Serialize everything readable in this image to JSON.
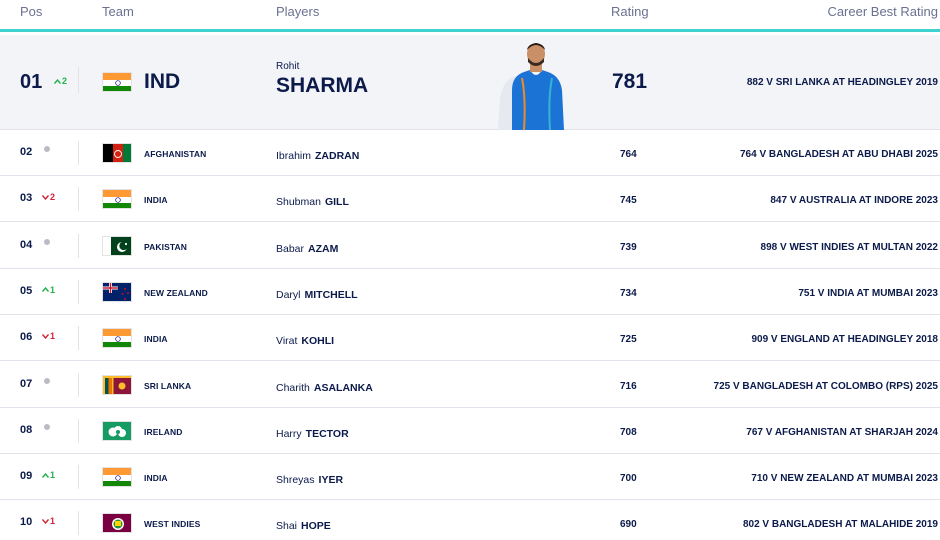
{
  "header": {
    "pos": "Pos",
    "team": "Team",
    "players": "Players",
    "rating": "Rating",
    "career_best": "Career Best Rating"
  },
  "leader": {
    "pos": "01",
    "movement": {
      "dir": "up",
      "value": "2"
    },
    "flag": "india-flag",
    "team": "IND",
    "first": "Rohit",
    "last": "SHARMA",
    "rating": "781",
    "career_best": "882 V SRI LANKA AT HEADINGLEY 2019"
  },
  "rows": [
    {
      "pos": "02",
      "movement": {
        "dir": "same",
        "value": ""
      },
      "flag": "afghanistan-flag",
      "team": "AFGHANISTAN",
      "first": "Ibrahim",
      "last": "ZADRAN",
      "rating": "764",
      "career_best": "764 V BANGLADESH AT ABU DHABI 2025"
    },
    {
      "pos": "03",
      "movement": {
        "dir": "down",
        "value": "2"
      },
      "flag": "india-flag",
      "team": "INDIA",
      "first": "Shubman",
      "last": "GILL",
      "rating": "745",
      "career_best": "847 V AUSTRALIA AT INDORE 2023"
    },
    {
      "pos": "04",
      "movement": {
        "dir": "same",
        "value": ""
      },
      "flag": "pakistan-flag",
      "team": "PAKISTAN",
      "first": "Babar",
      "last": "AZAM",
      "rating": "739",
      "career_best": "898 V WEST INDIES AT MULTAN 2022"
    },
    {
      "pos": "05",
      "movement": {
        "dir": "up",
        "value": "1"
      },
      "flag": "new-zealand-flag",
      "team": "NEW ZEALAND",
      "first": "Daryl",
      "last": "MITCHELL",
      "rating": "734",
      "career_best": "751 V INDIA AT MUMBAI 2023"
    },
    {
      "pos": "06",
      "movement": {
        "dir": "down",
        "value": "1"
      },
      "flag": "india-flag",
      "team": "INDIA",
      "first": "Virat",
      "last": "KOHLI",
      "rating": "725",
      "career_best": "909 V ENGLAND AT HEADINGLEY 2018"
    },
    {
      "pos": "07",
      "movement": {
        "dir": "same",
        "value": ""
      },
      "flag": "sri-lanka-flag",
      "team": "SRI LANKA",
      "first": "Charith",
      "last": "ASALANKA",
      "rating": "716",
      "career_best": "725 V BANGLADESH AT COLOMBO (RPS) 2025"
    },
    {
      "pos": "08",
      "movement": {
        "dir": "same",
        "value": ""
      },
      "flag": "ireland-flag",
      "team": "IRELAND",
      "first": "Harry",
      "last": "TECTOR",
      "rating": "708",
      "career_best": "767 V AFGHANISTAN AT SHARJAH 2024"
    },
    {
      "pos": "09",
      "movement": {
        "dir": "up",
        "value": "1"
      },
      "flag": "india-flag",
      "team": "INDIA",
      "first": "Shreyas",
      "last": "IYER",
      "rating": "700",
      "career_best": "710 V NEW ZEALAND AT MUMBAI 2023"
    },
    {
      "pos": "10",
      "movement": {
        "dir": "down",
        "value": "1"
      },
      "flag": "west-indies-flag",
      "team": "WEST INDIES",
      "first": "Shai",
      "last": "HOPE",
      "rating": "690",
      "career_best": "802 V BANGLADESH AT MALAHIDE 2019"
    }
  ],
  "colors": {
    "accent_bar": "#3fd0d0",
    "text": "#0b1a4a",
    "up": "#1fb24a",
    "down": "#d0223a"
  }
}
